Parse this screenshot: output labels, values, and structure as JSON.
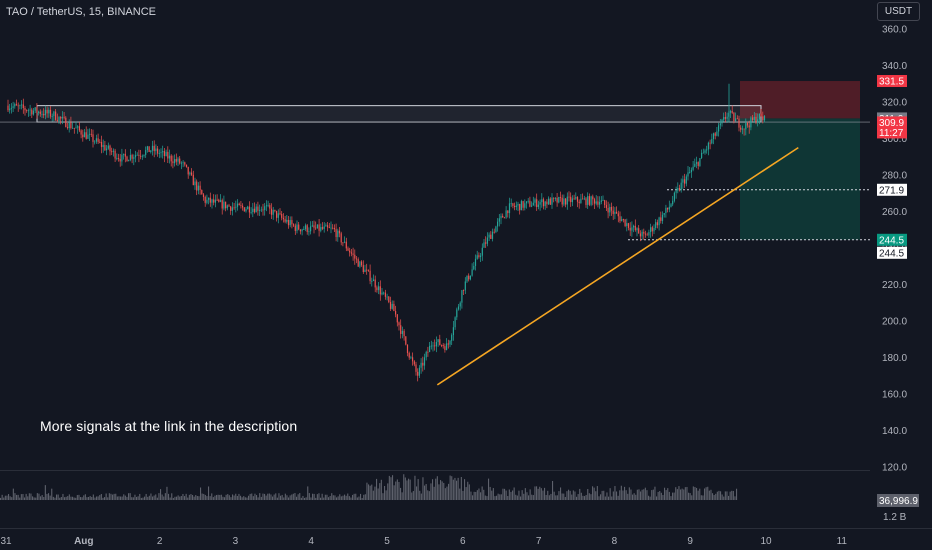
{
  "header": {
    "symbol_label": "TAO / TetherUS, 15, BINANCE",
    "currency": "USDT"
  },
  "note": "More signals at the link in the description",
  "colors": {
    "background": "#131722",
    "up": "#26a69a",
    "down": "#ef5350",
    "trendline": "#f5a623",
    "stop_zone": "#5a1e28",
    "target_zone": "#0f3a37",
    "axis_text": "#b2b5be"
  },
  "chart_data": {
    "type": "candlestick",
    "ylim": [
      120,
      360
    ],
    "y_ticks": [
      120,
      140,
      160,
      180,
      200,
      220,
      240,
      260,
      280,
      300,
      320,
      340,
      360
    ],
    "y_tick_labels": [
      "120.0",
      "140.0",
      "160.0",
      "180.0",
      "200.0",
      "220.0",
      "240.0",
      "260.0",
      "280.0",
      "300.0",
      "320.0",
      "340.0",
      "360.0"
    ],
    "x_tick_labels": [
      "31",
      "Aug",
      "2",
      "3",
      "4",
      "5",
      "6",
      "7",
      "8",
      "9",
      "10",
      "11"
    ],
    "price_path": [
      {
        "day": 31.0,
        "price": 318
      },
      {
        "day": 31.6,
        "price": 313
      },
      {
        "day": 32.1,
        "price": 300
      },
      {
        "day": 32.5,
        "price": 289
      },
      {
        "day": 32.9,
        "price": 294
      },
      {
        "day": 33.3,
        "price": 286
      },
      {
        "day": 33.6,
        "price": 266
      },
      {
        "day": 34.0,
        "price": 262
      },
      {
        "day": 34.4,
        "price": 262
      },
      {
        "day": 34.8,
        "price": 251
      },
      {
        "day": 35.3,
        "price": 250
      },
      {
        "day": 35.6,
        "price": 233
      },
      {
        "day": 35.8,
        "price": 223
      },
      {
        "day": 36.1,
        "price": 205
      },
      {
        "day": 36.3,
        "price": 181
      },
      {
        "day": 36.4,
        "price": 170
      },
      {
        "day": 36.6,
        "price": 189
      },
      {
        "day": 36.8,
        "price": 186
      },
      {
        "day": 37.0,
        "price": 218
      },
      {
        "day": 37.3,
        "price": 243
      },
      {
        "day": 37.6,
        "price": 262
      },
      {
        "day": 38.0,
        "price": 265
      },
      {
        "day": 38.4,
        "price": 266
      },
      {
        "day": 38.8,
        "price": 266
      },
      {
        "day": 39.2,
        "price": 252
      },
      {
        "day": 39.4,
        "price": 246
      },
      {
        "day": 39.7,
        "price": 261
      },
      {
        "day": 39.9,
        "price": 276
      },
      {
        "day": 40.1,
        "price": 287
      },
      {
        "day": 40.3,
        "price": 300
      },
      {
        "day": 40.5,
        "price": 314
      },
      {
        "day": 40.7,
        "price": 306
      },
      {
        "day": 40.9,
        "price": 312
      },
      {
        "day": 41.0,
        "price": 309.9
      }
    ],
    "volume_label": "36,996.9",
    "volume_axis_label": "1.2 B",
    "price_labels": [
      {
        "value": 331.5,
        "text": "331.5"
      },
      {
        "value": 311.0,
        "text": "311.0"
      },
      {
        "value": 309.9,
        "text": "309.9"
      },
      {
        "text": "11:27"
      },
      {
        "value": 271.9,
        "text": "271.9"
      },
      {
        "value": 244.5,
        "text": "244.5"
      },
      {
        "value": 244.5,
        "text": "244.5"
      }
    ],
    "annotations": {
      "resistance_zone": [
        309,
        318
      ],
      "trendline": [
        {
          "day": 36.4,
          "price": 165
        },
        {
          "day": 41.4,
          "price": 295
        }
      ],
      "position": {
        "entry": 311.0,
        "stop": 331.5,
        "target": 244.5
      },
      "support_levels": [
        271.9,
        244.5
      ]
    }
  }
}
